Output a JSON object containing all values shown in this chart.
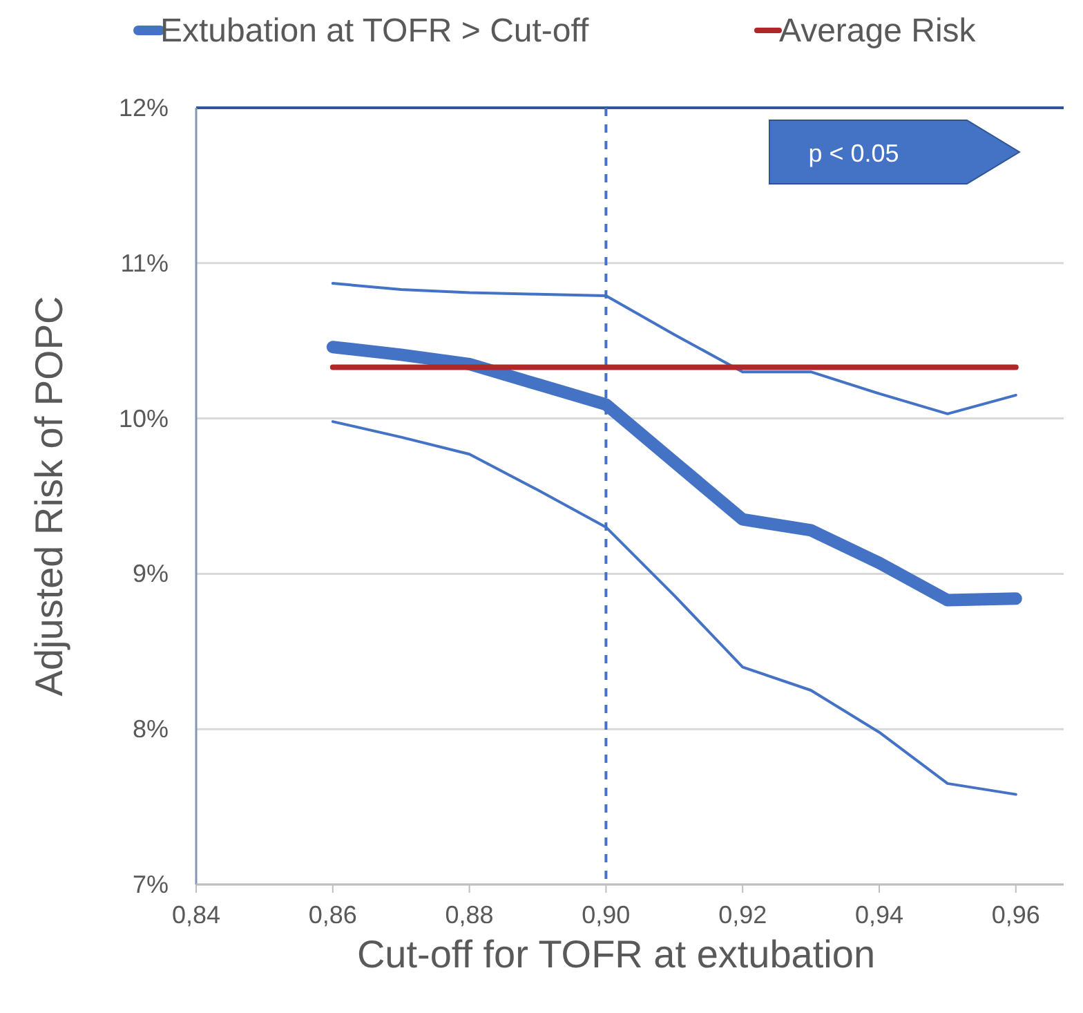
{
  "chart_data": {
    "type": "line",
    "xlabel": "Cut-off for TOFR at extubation",
    "ylabel": "Adjusted Risk of POPC",
    "x": [
      0.86,
      0.87,
      0.88,
      0.89,
      0.9,
      0.91,
      0.92,
      0.93,
      0.94,
      0.95,
      0.96
    ],
    "series": [
      {
        "name": "Extubation at TOFR > Cut-off",
        "color": "#4472c4",
        "values": [
          10.46,
          10.41,
          10.35,
          10.22,
          10.09,
          9.72,
          9.35,
          9.28,
          9.07,
          8.83,
          8.84
        ]
      },
      {
        "color": "#4472c4",
        "values": [
          10.87,
          10.83,
          10.81,
          10.8,
          10.79,
          10.54,
          10.3,
          10.3,
          10.16,
          10.03,
          10.15
        ]
      },
      {
        "color": "#4472c4",
        "values": [
          9.98,
          9.88,
          9.77,
          9.54,
          9.3,
          8.86,
          8.4,
          8.25,
          7.98,
          7.65,
          7.58
        ]
      },
      {
        "name": "Average Risk",
        "color": "#b0272a",
        "x": [
          0.86,
          0.96
        ],
        "values": [
          10.33,
          10.33
        ]
      }
    ],
    "xlim": [
      0.84,
      0.967
    ],
    "xticks": [
      {
        "value": 0.84,
        "label": "0,84"
      },
      {
        "value": 0.86,
        "label": "0,86"
      },
      {
        "value": 0.88,
        "label": "0,88"
      },
      {
        "value": 0.9,
        "label": "0,90"
      },
      {
        "value": 0.92,
        "label": "0,92"
      },
      {
        "value": 0.94,
        "label": "0,94"
      },
      {
        "value": 0.96,
        "label": "0,96"
      }
    ],
    "ylim": [
      7,
      12
    ],
    "yticks": [
      {
        "value": 7,
        "label": "7%"
      },
      {
        "value": 8,
        "label": "8%"
      },
      {
        "value": 9,
        "label": "9%"
      },
      {
        "value": 10,
        "label": "10%"
      },
      {
        "value": 11,
        "label": "11%"
      },
      {
        "value": 12,
        "label": "12%"
      }
    ],
    "ref_lines": [
      {
        "axis": "x",
        "value": 0.9,
        "color": "#4472c4",
        "line_style": "dashed"
      }
    ],
    "annotations": [
      "p < 0.05"
    ],
    "grid": "y",
    "legend": "top",
    "marker": "none",
    "line_style": "solid"
  }
}
